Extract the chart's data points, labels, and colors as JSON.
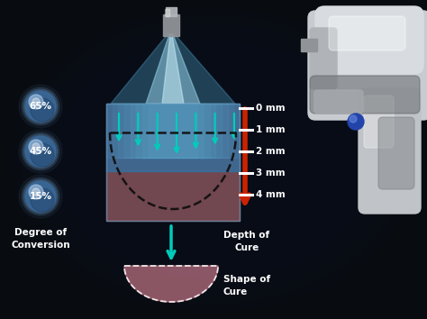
{
  "bg_color": "#080c10",
  "degree_labels": [
    "65%",
    "45%",
    "15%"
  ],
  "degree_title": "Degree of\nConversion",
  "depth_labels": [
    "0 mm",
    "1 mm",
    "2 mm",
    "3 mm",
    "4 mm"
  ],
  "depth_title": "Depth of\nCure",
  "shape_label": "Shape of\nCure",
  "bubble_color": "#5080b8",
  "arrow_cyan": "#00ccbb",
  "arrow_red": "#cc2200",
  "box_blue": "#2878b0",
  "box_pink": "#b86068",
  "gun_body": "#c8ccd0",
  "gun_highlight": "#e8eaec",
  "gun_shadow": "#909498",
  "gun_dark": "#606468",
  "nozzle_color": "#888c90"
}
